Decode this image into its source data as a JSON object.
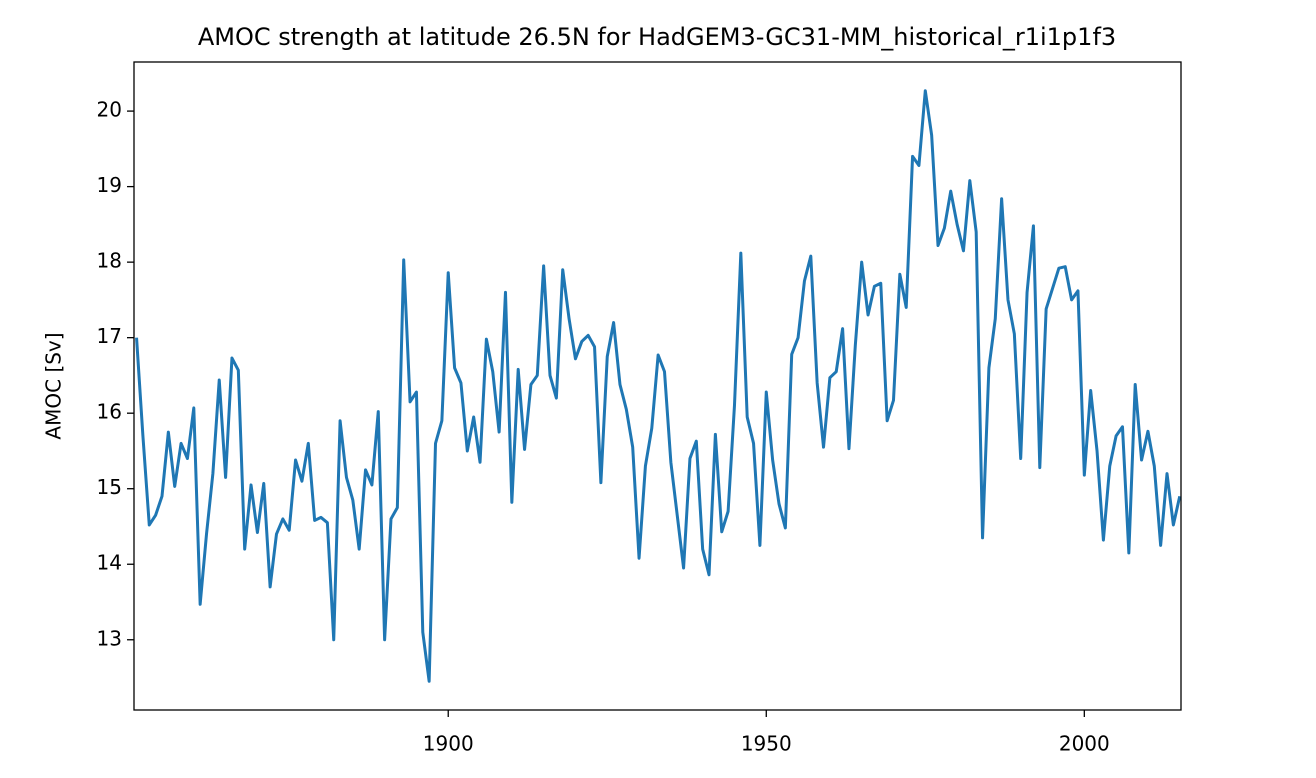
{
  "chart_data": {
    "type": "line",
    "title": "AMOC strength at latitude 26.5N for HadGEM3-GC31-MM_historical_r1i1p1f3",
    "y_label": "AMOC [Sv]",
    "x": [
      1851,
      1852,
      1853,
      1854,
      1855,
      1856,
      1857,
      1858,
      1859,
      1860,
      1861,
      1862,
      1863,
      1864,
      1865,
      1866,
      1867,
      1868,
      1869,
      1870,
      1871,
      1872,
      1873,
      1874,
      1875,
      1876,
      1877,
      1878,
      1879,
      1880,
      1881,
      1882,
      1883,
      1884,
      1885,
      1886,
      1887,
      1888,
      1889,
      1890,
      1891,
      1892,
      1893,
      1894,
      1895,
      1896,
      1897,
      1898,
      1899,
      1900,
      1901,
      1902,
      1903,
      1904,
      1905,
      1906,
      1907,
      1908,
      1909,
      1910,
      1911,
      1912,
      1913,
      1914,
      1915,
      1916,
      1917,
      1918,
      1919,
      1920,
      1921,
      1922,
      1923,
      1924,
      1925,
      1926,
      1927,
      1928,
      1929,
      1930,
      1931,
      1932,
      1933,
      1934,
      1935,
      1936,
      1937,
      1938,
      1939,
      1940,
      1941,
      1942,
      1943,
      1944,
      1945,
      1946,
      1947,
      1948,
      1949,
      1950,
      1951,
      1952,
      1953,
      1954,
      1955,
      1956,
      1957,
      1958,
      1959,
      1960,
      1961,
      1962,
      1963,
      1964,
      1965,
      1966,
      1967,
      1968,
      1969,
      1970,
      1971,
      1972,
      1973,
      1974,
      1975,
      1976,
      1977,
      1978,
      1979,
      1980,
      1981,
      1982,
      1983,
      1984,
      1985,
      1986,
      1987,
      1988,
      1989,
      1990,
      1991,
      1992,
      1993,
      1994,
      1995,
      1996,
      1997,
      1998,
      1999,
      2000,
      2001,
      2002,
      2003,
      2004,
      2005,
      2006,
      2007,
      2008,
      2009,
      2010,
      2011,
      2012,
      2013,
      2014,
      2015
    ],
    "series": [
      {
        "name": "AMOC",
        "color": "#1f77b4",
        "values": [
          17.0,
          15.7,
          14.52,
          14.65,
          14.9,
          15.75,
          15.03,
          15.6,
          15.4,
          16.07,
          13.47,
          14.4,
          15.2,
          16.44,
          15.15,
          16.73,
          16.57,
          14.2,
          15.05,
          14.42,
          15.07,
          13.7,
          14.4,
          14.6,
          14.45,
          15.38,
          15.1,
          15.6,
          14.58,
          14.62,
          14.55,
          13.0,
          15.9,
          15.15,
          14.85,
          14.2,
          15.25,
          15.05,
          16.02,
          13.0,
          14.6,
          14.75,
          18.03,
          16.15,
          16.28,
          13.1,
          12.45,
          15.6,
          15.9,
          17.86,
          16.6,
          16.4,
          15.5,
          15.95,
          15.35,
          16.98,
          16.55,
          15.75,
          17.6,
          14.82,
          16.58,
          15.52,
          16.38,
          16.5,
          17.95,
          16.5,
          16.2,
          17.9,
          17.25,
          16.72,
          16.95,
          17.03,
          16.88,
          15.08,
          16.75,
          17.2,
          16.38,
          16.05,
          15.55,
          14.08,
          15.3,
          15.8,
          16.77,
          16.55,
          15.35,
          14.65,
          13.95,
          15.4,
          15.63,
          14.2,
          13.86,
          15.72,
          14.43,
          14.7,
          16.1,
          18.12,
          15.95,
          15.6,
          14.25,
          16.28,
          15.38,
          14.8,
          14.48,
          16.78,
          17.0,
          17.75,
          18.08,
          16.4,
          15.55,
          16.47,
          16.55,
          17.12,
          15.53,
          16.9,
          18.0,
          17.3,
          17.68,
          17.72,
          15.9,
          16.17,
          17.84,
          17.4,
          19.4,
          19.28,
          20.27,
          19.68,
          18.22,
          18.45,
          18.94,
          18.5,
          18.15,
          19.08,
          18.4,
          14.35,
          16.6,
          17.25,
          18.84,
          17.5,
          17.05,
          15.4,
          17.6,
          18.48,
          15.28,
          17.38,
          17.65,
          17.92,
          17.94,
          17.5,
          17.62,
          15.18,
          16.3,
          15.5,
          14.32,
          15.3,
          15.7,
          15.82,
          14.15,
          16.38,
          15.38,
          15.76,
          15.3,
          14.25,
          15.2,
          14.52,
          14.9
        ]
      }
    ],
    "xlim": [
      1850.6,
      2015.2
    ],
    "xticks": [
      1900,
      1950,
      2000
    ],
    "ylim": [
      12.07,
      20.65
    ],
    "yticks": [
      13,
      14,
      15,
      16,
      17,
      18,
      19,
      20
    ]
  }
}
